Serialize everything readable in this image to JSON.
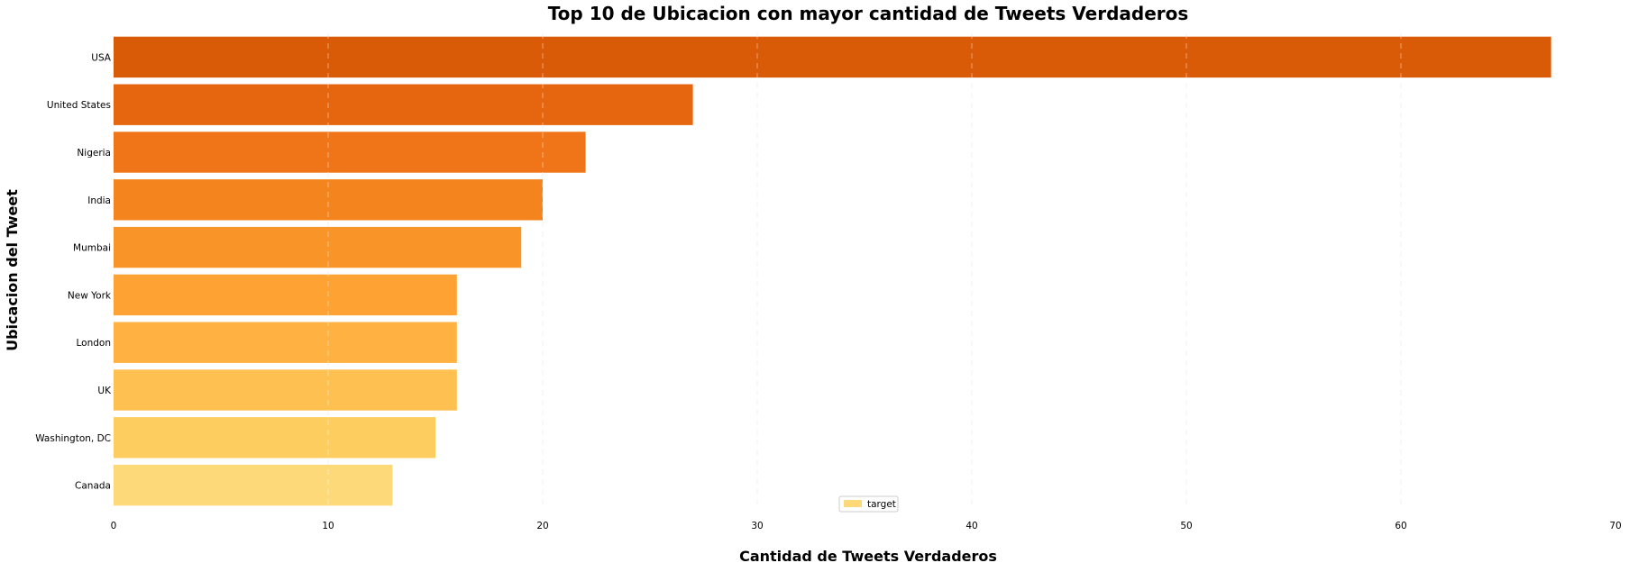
{
  "chart_data": {
    "type": "bar",
    "orientation": "horizontal",
    "title": "Top 10 de Ubicacion con mayor cantidad de Tweets Verdaderos",
    "xlabel": "Cantidad de Tweets Verdaderos",
    "ylabel": "Ubicacion del Tweet",
    "categories": [
      "USA",
      "United States",
      "Nigeria",
      "India",
      "Mumbai",
      "New York",
      "London",
      "UK",
      "Washington, DC",
      "Canada"
    ],
    "series": [
      {
        "name": "target",
        "values": [
          67,
          27,
          22,
          20,
          19,
          16,
          16,
          16,
          15,
          13
        ]
      }
    ],
    "xlim": [
      0,
      70
    ],
    "xticks": [
      0,
      10,
      20,
      30,
      40,
      50,
      60,
      70
    ],
    "grid": "vertical dashed",
    "legend_position": "bottom-center",
    "colors": [
      "#d95a07",
      "#e5660f",
      "#ef7518",
      "#f4841d",
      "#f99428",
      "#fda233",
      "#ffb142",
      "#fec050",
      "#fecd60",
      "#fed97a"
    ],
    "legend_color": "#fed97a"
  }
}
